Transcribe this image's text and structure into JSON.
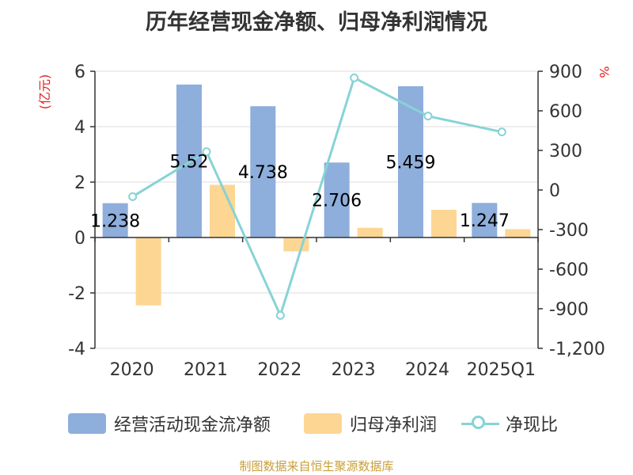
{
  "title": "历年经营现金净额、归母净利润情况",
  "source": "制图数据来自恒生聚源数据库",
  "colors": {
    "cashflow": "#8eaedb",
    "net_profit": "#fdd693",
    "ratio": "#87d3d6",
    "axis": "#333333",
    "grid": "#dddddd",
    "left_unit": "#e02020",
    "right_unit": "#e02020"
  },
  "chart_data": {
    "type": "bar",
    "title": "历年经营现金净额、归母净利润情况",
    "categories": [
      "2020",
      "2021",
      "2022",
      "2023",
      "2024",
      "2025Q1"
    ],
    "y_left": {
      "label": "(亿元)",
      "min": -4,
      "max": 6,
      "ticks": [
        6,
        4,
        2,
        0,
        -2,
        -4
      ],
      "tick_labels": [
        "6",
        "4",
        "2",
        "0",
        "-2",
        "-4"
      ]
    },
    "y_right": {
      "label": "%",
      "min": -1200,
      "max": 900,
      "ticks": [
        900,
        600,
        300,
        0,
        -300,
        -600,
        -900,
        -1200
      ],
      "tick_labels": [
        "900",
        "600",
        "300",
        "0",
        "-300",
        "-600",
        "-900",
        "-1,200"
      ]
    },
    "series": [
      {
        "name": "经营活动现金流净额",
        "type": "bar",
        "axis": "left",
        "values": [
          1.238,
          5.52,
          4.738,
          2.706,
          5.459,
          1.247
        ],
        "labels": [
          "1.238",
          "5.52",
          "4.738",
          "2.706",
          "5.459",
          "1.247"
        ]
      },
      {
        "name": "归母净利润",
        "type": "bar",
        "axis": "left",
        "values": [
          -2.45,
          1.9,
          -0.5,
          0.35,
          1.0,
          0.3
        ]
      },
      {
        "name": "净现比",
        "type": "line",
        "axis": "right",
        "values": [
          -50,
          290,
          -950,
          850,
          560,
          440
        ]
      }
    ],
    "legend_position": "bottom",
    "grid": true
  }
}
